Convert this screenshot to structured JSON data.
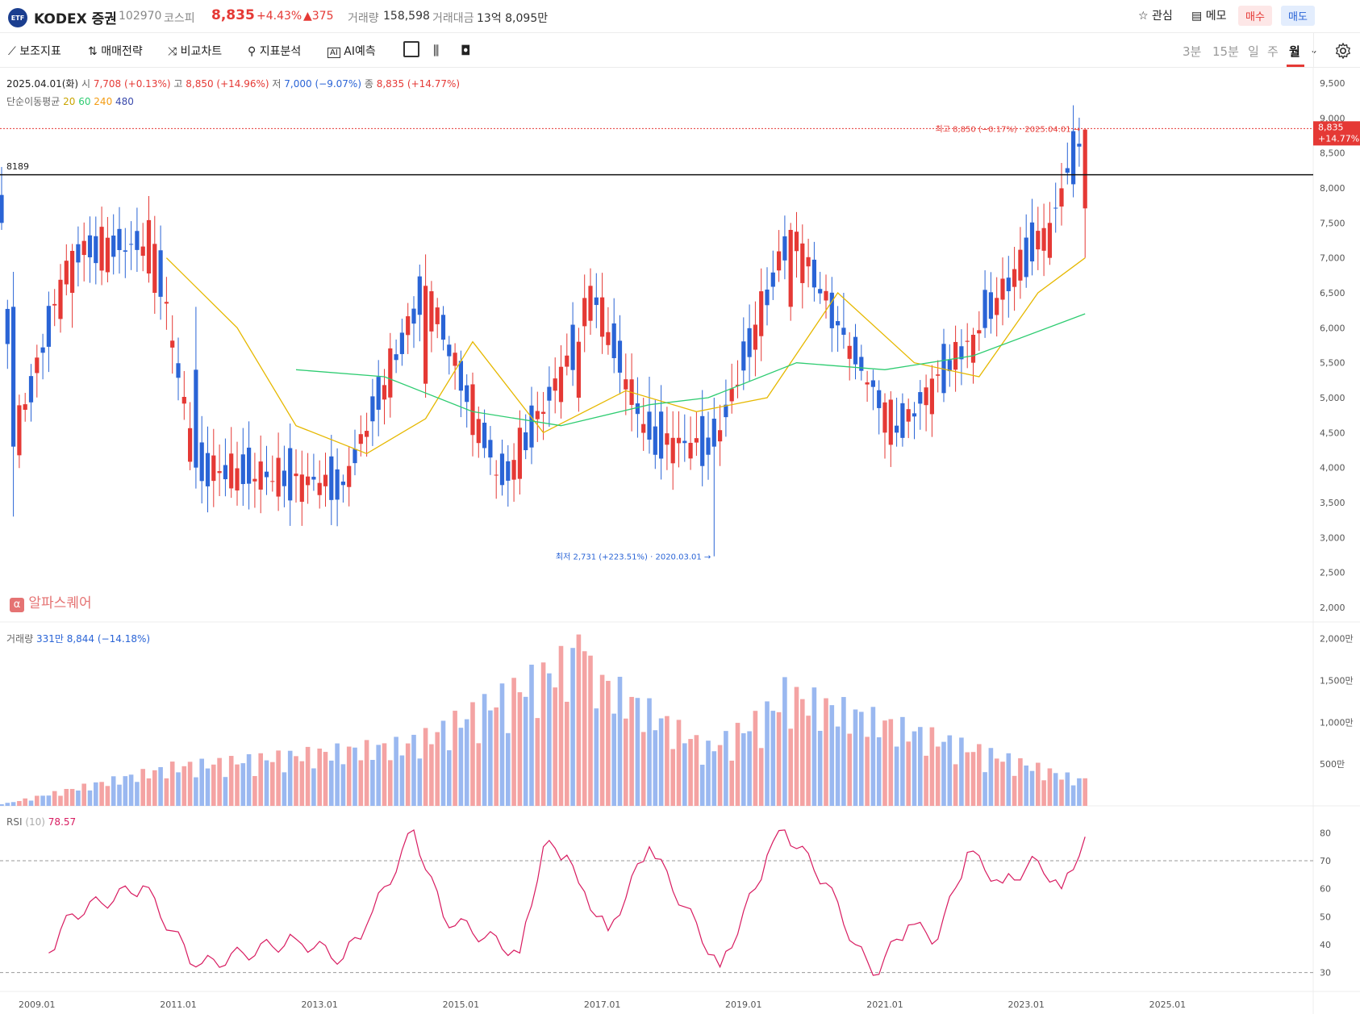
{
  "header": {
    "badge": "ETF",
    "name": "KODEX 증권",
    "code": "102970",
    "market": "코스피",
    "price": "8,835",
    "change_pct": "+4.43%",
    "change_abs": "▲375",
    "volume_label": "거래량",
    "volume_value": "158,598",
    "amount_label": "거래대금",
    "amount_value": "13억 8,095만",
    "watch_label": "관심",
    "memo_label": "메모",
    "buy_label": "매수",
    "sell_label": "매도"
  },
  "toolbar": {
    "items": [
      "보조지표",
      "매매전략",
      "비교차트",
      "지표분석",
      "AI예측"
    ],
    "timeframes": [
      "3분",
      "15분",
      "일",
      "주",
      "월"
    ],
    "active_timeframe": "월"
  },
  "ohlc": {
    "date": "2025.04.01(화)",
    "open_label": "시",
    "open": "7,708 (+0.13%)",
    "high_label": "고",
    "high": "8,850 (+14.96%)",
    "low_label": "저",
    "low": "7,000 (−9.07%)",
    "close_label": "종",
    "close": "8,835 (+14.77%)"
  },
  "ma_legend": {
    "label": "단순이동평균",
    "items": [
      {
        "text": "20",
        "color": "#e6b800"
      },
      {
        "text": "60",
        "color": "#2ecc71"
      },
      {
        "text": "240",
        "color": "#f39c12"
      },
      {
        "text": "480",
        "color": "#3949ab"
      }
    ]
  },
  "annotations": {
    "hline_label": "8189",
    "high_note": "최고 8,850 (−0.17%) · 2025.04.01",
    "low_note": "최저 2,731 (+223.51%) · 2020.03.01",
    "price_tag": "8,835",
    "price_tag_pct": "+14.77%",
    "watermark": "알파스퀘어"
  },
  "volume_panel": {
    "label": "거래량",
    "value": "331만 8,844 (−14.18%)"
  },
  "rsi_panel": {
    "label": "RSI",
    "period": "(10)",
    "value": "78.57"
  },
  "colors": {
    "up": "#e53935",
    "down": "#2a64d6",
    "ma20": "#e6b800",
    "ma60": "#2ecc71",
    "rsi": "#d81b60"
  },
  "chart_data": {
    "type": "candlestick",
    "price_axis": {
      "min": 2000,
      "max": 9500,
      "ticks": [
        "9,500",
        "9,000",
        "8,500",
        "8,000",
        "7,500",
        "7,000",
        "6,500",
        "6,000",
        "5,500",
        "5,000",
        "4,500",
        "4,000",
        "3,500",
        "3,000",
        "2,500",
        "2,000"
      ]
    },
    "x_axis": {
      "ticks": [
        "2009.01",
        "2011.01",
        "2013.01",
        "2015.01",
        "2017.01",
        "2019.01",
        "2021.01",
        "2023.01",
        "2025.01"
      ]
    },
    "horizontal_line": 8189,
    "key_points": [
      {
        "t": 0,
        "o": 7900,
        "h": 8300,
        "l": 7400,
        "c": 7500
      },
      {
        "t": 2,
        "o": 6300,
        "h": 6800,
        "l": 3300,
        "c": 4300
      },
      {
        "t": 12,
        "o": 6500,
        "h": 7200,
        "l": 6000,
        "c": 7100
      },
      {
        "t": 26,
        "o": 6500,
        "h": 7600,
        "l": 6200,
        "c": 7200
      },
      {
        "t": 33,
        "o": 5400,
        "h": 6300,
        "l": 3700,
        "c": 4000
      },
      {
        "t": 58,
        "o": 3800,
        "h": 3900,
        "l": 3500,
        "c": 3750
      },
      {
        "t": 72,
        "o": 5200,
        "h": 7050,
        "l": 5000,
        "c": 6600
      },
      {
        "t": 85,
        "o": 4200,
        "h": 4400,
        "l": 3600,
        "c": 3750
      },
      {
        "t": 98,
        "o": 5000,
        "h": 6000,
        "l": 4800,
        "c": 5800
      },
      {
        "t": 100,
        "o": 6100,
        "h": 6850,
        "l": 5900,
        "c": 6600
      },
      {
        "t": 110,
        "o": 4800,
        "h": 5300,
        "l": 4200,
        "c": 4400
      },
      {
        "t": 121,
        "o": 4700,
        "h": 5000,
        "l": 2731,
        "c": 4300
      },
      {
        "t": 134,
        "o": 6300,
        "h": 7500,
        "l": 6100,
        "c": 7400
      },
      {
        "t": 143,
        "o": 6000,
        "h": 6500,
        "l": 5700,
        "c": 5900
      },
      {
        "t": 152,
        "o": 4600,
        "h": 5000,
        "l": 4300,
        "c": 4500
      },
      {
        "t": 165,
        "o": 5500,
        "h": 6000,
        "l": 5200,
        "c": 5900
      },
      {
        "t": 178,
        "o": 7000,
        "h": 7800,
        "l": 6900,
        "c": 7500
      },
      {
        "t": 184,
        "o": 7708,
        "h": 8850,
        "l": 7000,
        "c": 8835
      }
    ],
    "ma20_points": [
      [
        28,
        7000
      ],
      [
        40,
        6000
      ],
      [
        50,
        4600
      ],
      [
        62,
        4200
      ],
      [
        72,
        4700
      ],
      [
        80,
        5800
      ],
      [
        92,
        4500
      ],
      [
        106,
        5100
      ],
      [
        118,
        4800
      ],
      [
        130,
        5000
      ],
      [
        142,
        6500
      ],
      [
        155,
        5500
      ],
      [
        166,
        5300
      ],
      [
        176,
        6500
      ],
      [
        184,
        7000
      ]
    ],
    "ma60_points": [
      [
        50,
        5400
      ],
      [
        65,
        5300
      ],
      [
        80,
        4800
      ],
      [
        95,
        4600
      ],
      [
        110,
        4900
      ],
      [
        120,
        5000
      ],
      [
        135,
        5500
      ],
      [
        150,
        5400
      ],
      [
        165,
        5600
      ],
      [
        184,
        6200
      ]
    ],
    "volume": {
      "axis_ticks": [
        "2,000만",
        "1,500만",
        "1,000만",
        "500만"
      ],
      "max": 2200,
      "unit": "만",
      "key_values": [
        [
          0,
          20
        ],
        [
          29,
          530
        ],
        [
          70,
          850
        ],
        [
          98,
          2050
        ],
        [
          99,
          1850
        ],
        [
          120,
          780
        ],
        [
          130,
          1250
        ],
        [
          133,
          1540
        ],
        [
          184,
          330
        ]
      ]
    },
    "rsi": {
      "axis_ticks": [
        "80",
        "70",
        "60",
        "50",
        "40",
        "30"
      ],
      "min": 25,
      "max": 85,
      "overbought": 70,
      "oversold": 30,
      "points": [
        [
          8,
          37
        ],
        [
          12,
          51
        ],
        [
          24,
          61
        ],
        [
          33,
          32
        ],
        [
          50,
          42
        ],
        [
          58,
          35
        ],
        [
          62,
          47
        ],
        [
          70,
          81
        ],
        [
          75,
          50
        ],
        [
          88,
          37
        ],
        [
          92,
          75
        ],
        [
          96,
          72
        ],
        [
          98,
          62
        ],
        [
          103,
          45
        ],
        [
          110,
          75
        ],
        [
          122,
          32
        ],
        [
          128,
          60
        ],
        [
          130,
          72
        ],
        [
          133,
          81
        ],
        [
          140,
          62
        ],
        [
          145,
          40
        ],
        [
          148,
          29
        ],
        [
          154,
          47
        ],
        [
          159,
          42
        ],
        [
          164,
          73
        ],
        [
          170,
          62
        ],
        [
          176,
          70
        ],
        [
          180,
          60
        ],
        [
          184,
          78.57
        ]
      ]
    }
  }
}
